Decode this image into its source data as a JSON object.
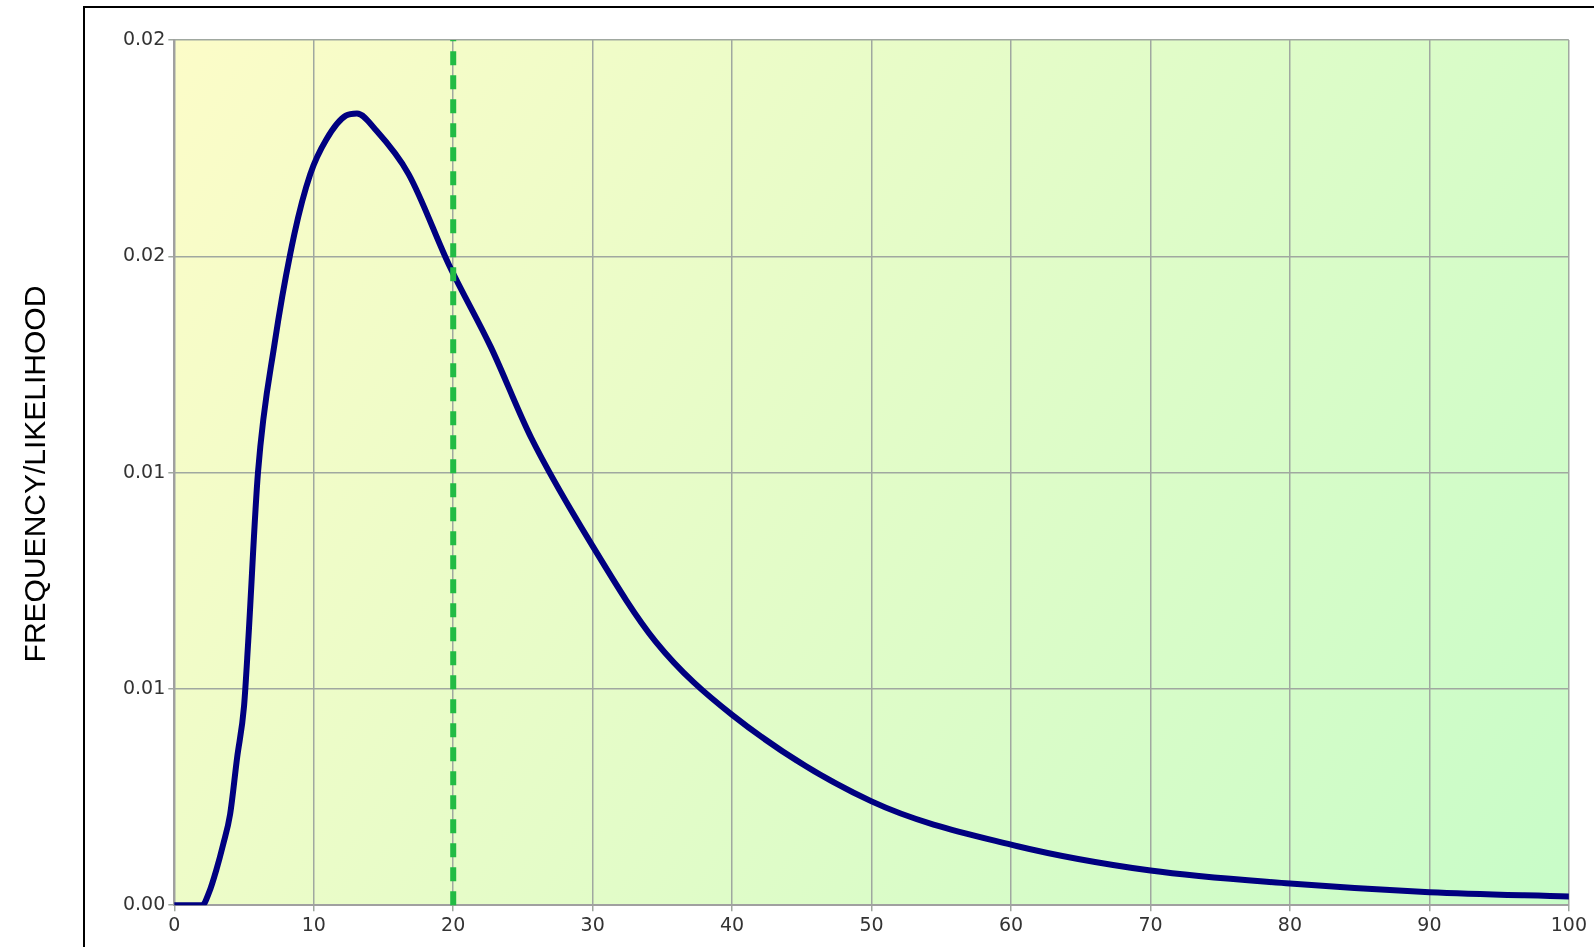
{
  "chart_data": {
    "type": "line",
    "ylabel": "FREQUENCY/LIKELIHOOD",
    "series": [
      {
        "color": "#000080",
        "x": [
          0,
          1.5,
          2,
          2.5,
          3,
          3.5,
          4,
          4.5,
          5,
          5.3,
          6,
          7.2,
          8.6,
          9.75,
          10.9,
          12.3,
          13.1,
          14.5,
          16.8,
          19.7,
          22.7,
          25.6,
          30,
          34.5,
          40,
          50,
          60,
          70,
          80,
          90,
          100
        ],
        "values": [
          0,
          0,
          0,
          0.0003,
          0.0008,
          0.0014,
          0.0021,
          0.0034,
          0.0046,
          0.0061,
          0.01,
          0.013,
          0.0155,
          0.0169,
          0.0177,
          0.01825,
          0.0183,
          0.0179,
          0.0169,
          0.0148,
          0.0129,
          0.0108,
          0.0083,
          0.0061,
          0.0044,
          0.0024,
          0.0014,
          0.0008,
          0.0005,
          0.0003,
          0.0002
        ]
      }
    ],
    "xlim": [
      0,
      100
    ],
    "xticks": [
      0,
      10,
      20,
      30,
      40,
      50,
      60,
      70,
      80,
      90,
      100
    ],
    "ylim": [
      0,
      0.02
    ],
    "yticks": [
      {
        "value": 0,
        "label": "0.00"
      },
      {
        "value": 0.005,
        "label": "0.01"
      },
      {
        "value": 0.01,
        "label": "0.01"
      },
      {
        "value": 0.015,
        "label": "0.02"
      },
      {
        "value": 0.02,
        "label": "0.02"
      }
    ],
    "grid": true,
    "legend": false,
    "marker": "none",
    "line_style": "solid",
    "ref_lines": [
      {
        "axis": "x",
        "value": 20,
        "color": "#22bb44",
        "line_style": "dashed"
      }
    ]
  }
}
